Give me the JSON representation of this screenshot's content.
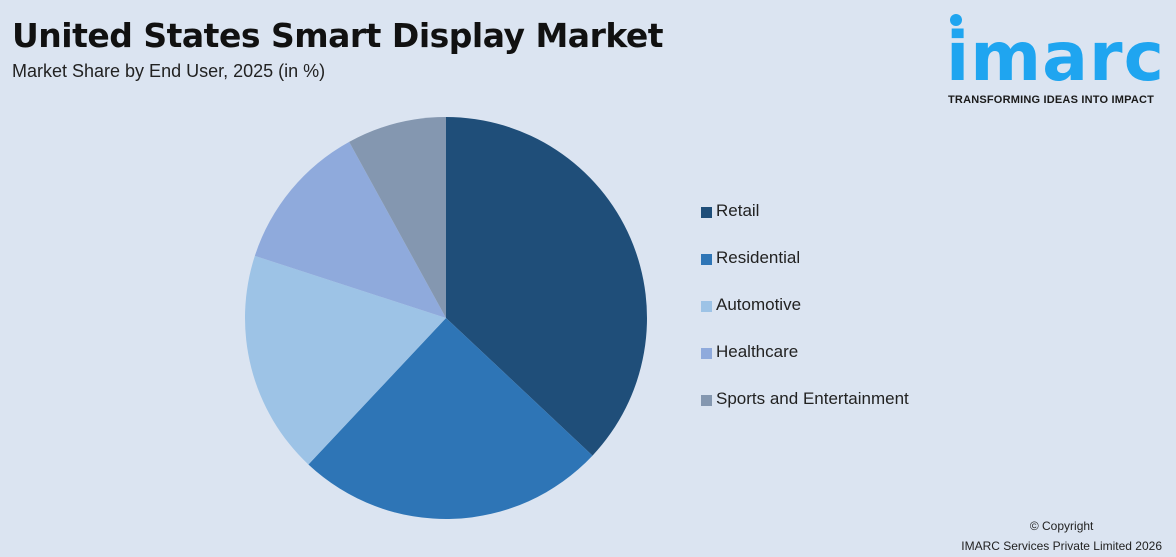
{
  "header": {
    "title": "United States Smart Display Market",
    "subtitle": "Market Share by End User, 2025 (in %)"
  },
  "logo": {
    "wordmark": "imarc",
    "tagline": "TRANSFORMING IDEAS INTO IMPACT",
    "color": "#1fa5f0"
  },
  "chart_data": {
    "type": "pie",
    "title": "United States Smart Display Market",
    "subtitle": "Market Share by End User, 2025 (in %)",
    "legend_position": "right",
    "start_angle": "top, clockwise",
    "categories": [
      "Retail",
      "Residential",
      "Automotive",
      "Healthcare",
      "Sports and Entertainment"
    ],
    "values": [
      37,
      25,
      18,
      12,
      8
    ],
    "colors": [
      "#1f4e79",
      "#2e75b6",
      "#9dc3e6",
      "#8faadc",
      "#8497b0"
    ]
  },
  "footer": {
    "copyright": "© Copyright",
    "company": "IMARC Services Private Limited 2026"
  }
}
